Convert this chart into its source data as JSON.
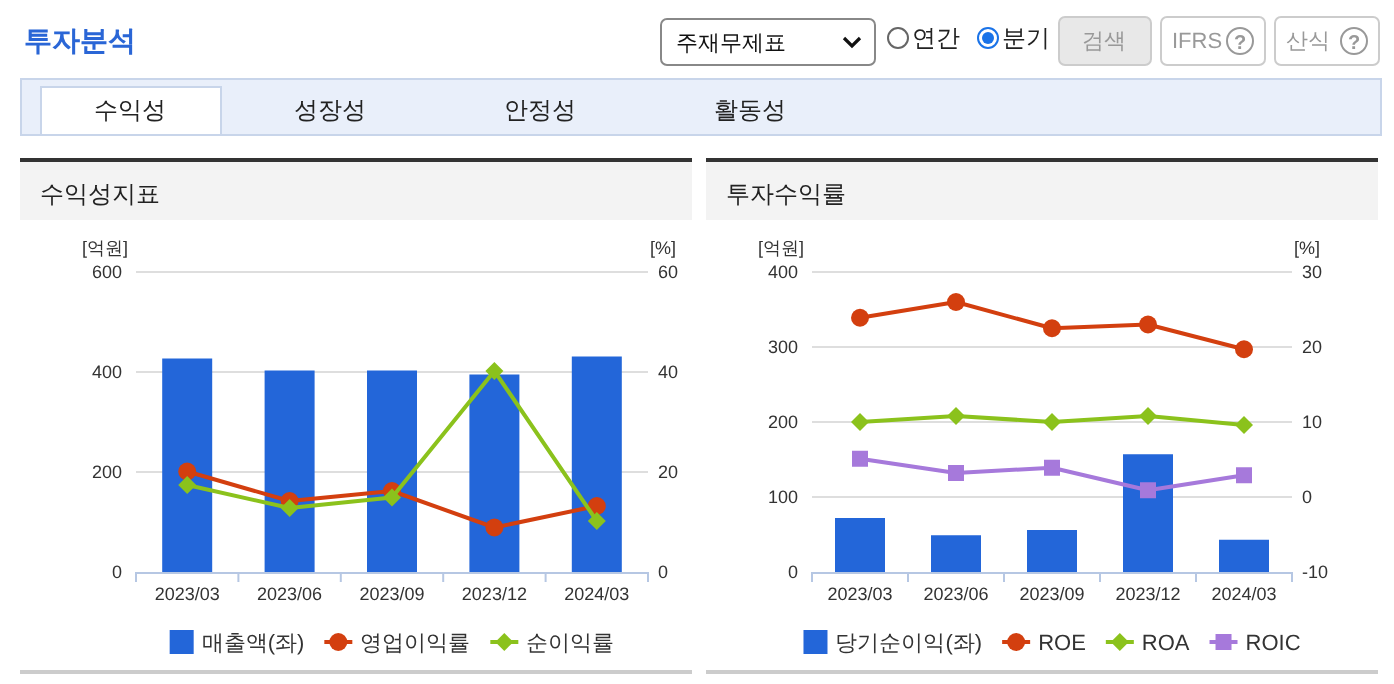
{
  "chart_data": [
    {
      "type": "other",
      "title": "투자분석",
      "annotations": [
        "주재무제표",
        "연간",
        "분기",
        "검색",
        "IFRS",
        "?",
        "산식",
        "?",
        "수익성",
        "성장성",
        "안정성",
        "활동성"
      ]
    },
    {
      "type": "bar",
      "title": "수익성지표",
      "ylabel": "[억원]",
      "y2label": "[%]",
      "categories": [
        "2023/03",
        "2023/06",
        "2023/09",
        "2023/12",
        "2024/03"
      ],
      "ylim": [
        0,
        600
      ],
      "yticks": [
        0,
        200,
        400,
        600
      ],
      "y2lim": [
        0,
        60
      ],
      "y2ticks": [
        0,
        20,
        40,
        60
      ],
      "grid": "y",
      "legend": "bottom",
      "series": [
        {
          "name": "매출액(좌)",
          "type": "bar",
          "color": "#2366d9",
          "values": [
            427,
            403,
            403,
            395,
            431
          ]
        },
        {
          "name": "영업이익률",
          "type": "line",
          "axis": "y2",
          "marker": "circle",
          "color": "#d33f0f",
          "values": [
            20.1,
            14.2,
            16.2,
            8.9,
            13.2
          ]
        },
        {
          "name": "순이익률",
          "type": "line",
          "axis": "y2",
          "marker": "diamond",
          "color": "#8bc21c",
          "values": [
            17.4,
            12.8,
            14.9,
            40.2,
            10.2
          ]
        }
      ]
    },
    {
      "type": "bar",
      "title": "투자수익률",
      "ylabel": "[억원]",
      "y2label": "[%]",
      "categories": [
        "2023/03",
        "2023/06",
        "2023/09",
        "2023/12",
        "2024/03"
      ],
      "ylim": [
        0,
        400
      ],
      "yticks": [
        0,
        100,
        200,
        300,
        400
      ],
      "y2lim": [
        -10,
        30
      ],
      "y2ticks": [
        -10,
        0,
        10,
        20,
        30
      ],
      "grid": "y",
      "legend": "bottom",
      "series": [
        {
          "name": "당기순이익(좌)",
          "type": "bar",
          "color": "#2366d9",
          "values": [
            72,
            49,
            56,
            157,
            43
          ]
        },
        {
          "name": "ROE",
          "type": "line",
          "axis": "y2",
          "marker": "circle",
          "color": "#d33f0f",
          "values": [
            23.9,
            26.0,
            22.5,
            23.0,
            19.7
          ]
        },
        {
          "name": "ROA",
          "type": "line",
          "axis": "y2",
          "marker": "diamond",
          "color": "#8bc21c",
          "values": [
            10.0,
            10.8,
            10.0,
            10.8,
            9.6
          ]
        },
        {
          "name": "ROIC",
          "type": "line",
          "axis": "y2",
          "marker": "square",
          "color": "#a679db",
          "values": [
            5.1,
            3.2,
            3.9,
            0.9,
            2.9
          ]
        }
      ]
    }
  ]
}
